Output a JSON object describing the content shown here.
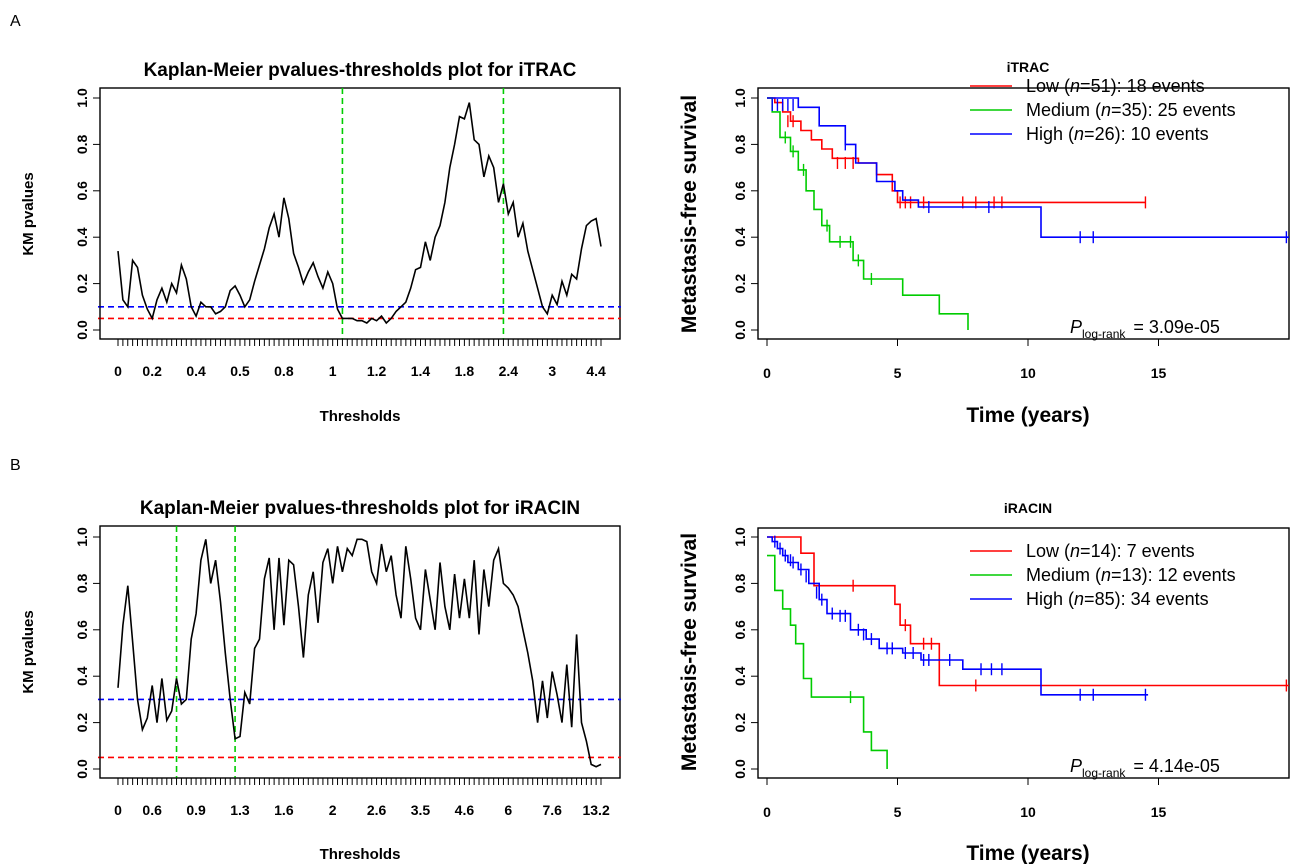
{
  "panels": [
    {
      "letter": "A",
      "km_pvalue": {
        "title": "Kaplan-Meier pvalues-thresholds plot for iTRAC",
        "xlabel": "Thresholds",
        "ylabel": "KM pvalues",
        "tick_labels_x": [
          "0",
          "0.2",
          "0.4",
          "0.5",
          "0.8",
          "1",
          "1.2",
          "1.4",
          "1.8",
          "2.4",
          "3",
          "4.4"
        ],
        "tick_labels_y": [
          "0.0",
          "0.2",
          "0.4",
          "0.6",
          "0.8",
          "1.0"
        ]
      },
      "survival": {
        "title": "iTRAC",
        "xlabel": "Time (years)",
        "ylabel": "Metastasis-free survival",
        "tick_labels_x": [
          "0",
          "5",
          "10",
          "15"
        ],
        "tick_labels_y": [
          "0.0",
          "0.2",
          "0.4",
          "0.6",
          "0.8",
          "1.0"
        ],
        "legend": [
          {
            "pre": "Low",
            "n": "51",
            "events": "18",
            "color": "#ff0000"
          },
          {
            "pre": "Medium",
            "n": "35",
            "events": "25",
            "color": "#00cc00"
          },
          {
            "pre": "High",
            "n": "26",
            "events": "10",
            "color": "#0000ff"
          }
        ],
        "p_label": "P",
        "p_sub": "log-rank",
        "p_value": "=  3.09e-05"
      }
    },
    {
      "letter": "B",
      "km_pvalue": {
        "title": "Kaplan-Meier pvalues-thresholds plot for iRACIN",
        "xlabel": "Thresholds",
        "ylabel": "KM pvalues",
        "tick_labels_x": [
          "0",
          "0.6",
          "0.9",
          "1.3",
          "1.6",
          "2",
          "2.6",
          "3.5",
          "4.6",
          "6",
          "7.6",
          "13.2"
        ],
        "tick_labels_y": [
          "0.0",
          "0.2",
          "0.4",
          "0.6",
          "0.8",
          "1.0"
        ]
      },
      "survival": {
        "title": "iRACIN",
        "xlabel": "Time (years)",
        "ylabel": "Metastasis-free survival",
        "tick_labels_x": [
          "0",
          "5",
          "10",
          "15"
        ],
        "tick_labels_y": [
          "0.0",
          "0.2",
          "0.4",
          "0.6",
          "0.8",
          "1.0"
        ],
        "legend": [
          {
            "pre": "Low",
            "n": "14",
            "events": "7",
            "color": "#ff0000"
          },
          {
            "pre": "Medium",
            "n": "13",
            "events": "12",
            "color": "#00cc00"
          },
          {
            "pre": "High",
            "n": "85",
            "events": "34",
            "color": "#0000ff"
          }
        ],
        "p_label": "P",
        "p_sub": "log-rank",
        "p_value": "=  4.14e-05"
      }
    }
  ],
  "chart_data": [
    {
      "type": "line",
      "title": "Kaplan-Meier pvalues-thresholds plot for iTRAC",
      "xlabel": "Thresholds",
      "ylabel": "KM pvalues",
      "ylim": [
        0,
        1
      ],
      "n_thresholds": 100,
      "x_tick_indices": [
        0,
        7,
        16,
        25,
        34,
        44,
        53,
        62,
        71,
        80,
        89,
        98
      ],
      "hlines": [
        {
          "y": 0.1,
          "color": "#0000ff"
        },
        {
          "y": 0.05,
          "color": "#ff0000"
        }
      ],
      "vlines": [
        {
          "x_index": 46,
          "color": "#00cc00"
        },
        {
          "x_index": 79,
          "color": "#00cc00"
        }
      ],
      "series": [
        {
          "color": "#000000",
          "values": [
            0.34,
            0.13,
            0.1,
            0.3,
            0.27,
            0.15,
            0.09,
            0.05,
            0.13,
            0.18,
            0.12,
            0.2,
            0.16,
            0.28,
            0.22,
            0.1,
            0.06,
            0.12,
            0.1,
            0.1,
            0.07,
            0.08,
            0.1,
            0.17,
            0.19,
            0.15,
            0.1,
            0.13,
            0.21,
            0.28,
            0.35,
            0.44,
            0.5,
            0.4,
            0.57,
            0.48,
            0.33,
            0.27,
            0.2,
            0.25,
            0.29,
            0.23,
            0.18,
            0.25,
            0.2,
            0.09,
            0.05,
            0.05,
            0.05,
            0.04,
            0.04,
            0.03,
            0.05,
            0.04,
            0.06,
            0.03,
            0.05,
            0.08,
            0.1,
            0.12,
            0.18,
            0.26,
            0.27,
            0.38,
            0.3,
            0.4,
            0.45,
            0.55,
            0.7,
            0.8,
            0.92,
            0.91,
            0.98,
            0.82,
            0.8,
            0.66,
            0.75,
            0.7,
            0.55,
            0.63,
            0.5,
            0.55,
            0.4,
            0.46,
            0.34,
            0.26,
            0.18,
            0.1,
            0.07,
            0.15,
            0.11,
            0.21,
            0.15,
            0.24,
            0.22,
            0.35,
            0.45,
            0.47,
            0.48,
            0.36
          ]
        }
      ]
    },
    {
      "type": "line",
      "title": "iTRAC",
      "xlabel": "Time (years)",
      "ylabel": "Metastasis-free survival",
      "xlim": [
        0,
        20
      ],
      "ylim": [
        0,
        1
      ],
      "series": [
        {
          "name": "Low",
          "color": "#ff0000",
          "steps": [
            [
              0,
              1.0
            ],
            [
              0.3,
              0.98
            ],
            [
              0.6,
              0.94
            ],
            [
              0.9,
              0.9
            ],
            [
              1.3,
              0.86
            ],
            [
              1.7,
              0.82
            ],
            [
              2.1,
              0.78
            ],
            [
              2.5,
              0.74
            ],
            [
              3.5,
              0.72
            ],
            [
              4.2,
              0.67
            ],
            [
              4.8,
              0.6
            ],
            [
              5.0,
              0.55
            ],
            [
              14.5,
              0.55
            ]
          ],
          "censors": [
            [
              0.8,
              0.9
            ],
            [
              1.0,
              0.9
            ],
            [
              2.7,
              0.72
            ],
            [
              3.0,
              0.72
            ],
            [
              3.3,
              0.72
            ],
            [
              5.1,
              0.55
            ],
            [
              5.3,
              0.55
            ],
            [
              5.5,
              0.55
            ],
            [
              6.0,
              0.55
            ],
            [
              7.5,
              0.55
            ],
            [
              8.0,
              0.55
            ],
            [
              8.7,
              0.55
            ],
            [
              9.0,
              0.55
            ],
            [
              14.5,
              0.55
            ]
          ]
        },
        {
          "name": "Medium",
          "color": "#00cc00",
          "steps": [
            [
              0,
              1.0
            ],
            [
              0.2,
              0.94
            ],
            [
              0.5,
              0.83
            ],
            [
              0.9,
              0.77
            ],
            [
              1.2,
              0.69
            ],
            [
              1.5,
              0.6
            ],
            [
              1.8,
              0.52
            ],
            [
              2.1,
              0.45
            ],
            [
              2.4,
              0.38
            ],
            [
              3.3,
              0.3
            ],
            [
              3.7,
              0.22
            ],
            [
              5.2,
              0.15
            ],
            [
              6.6,
              0.07
            ],
            [
              7.7,
              0.0
            ]
          ],
          "censors": [
            [
              0.7,
              0.83
            ],
            [
              1.0,
              0.77
            ],
            [
              1.4,
              0.69
            ],
            [
              2.3,
              0.45
            ],
            [
              2.8,
              0.38
            ],
            [
              3.2,
              0.38
            ],
            [
              3.5,
              0.3
            ],
            [
              4.0,
              0.22
            ]
          ]
        },
        {
          "name": "High",
          "color": "#0000ff",
          "steps": [
            [
              0,
              1.0
            ],
            [
              1.2,
              0.96
            ],
            [
              2.0,
              0.88
            ],
            [
              3.0,
              0.8
            ],
            [
              3.4,
              0.72
            ],
            [
              4.2,
              0.64
            ],
            [
              4.9,
              0.6
            ],
            [
              5.2,
              0.56
            ],
            [
              5.8,
              0.53
            ],
            [
              10.5,
              0.4
            ],
            [
              20,
              0.4
            ]
          ],
          "censors": [
            [
              0.2,
              0.97
            ],
            [
              0.4,
              0.97
            ],
            [
              0.6,
              0.97
            ],
            [
              0.8,
              0.97
            ],
            [
              1.0,
              0.97
            ],
            [
              3.0,
              0.8
            ],
            [
              6.2,
              0.53
            ],
            [
              8.5,
              0.53
            ],
            [
              12.0,
              0.4
            ],
            [
              12.5,
              0.4
            ],
            [
              19.9,
              0.4
            ]
          ]
        }
      ]
    },
    {
      "type": "line",
      "title": "Kaplan-Meier pvalues-thresholds plot for iRACIN",
      "xlabel": "Thresholds",
      "ylabel": "KM pvalues",
      "ylim": [
        0,
        1
      ],
      "n_thresholds": 100,
      "x_tick_indices": [
        0,
        7,
        16,
        25,
        34,
        44,
        53,
        62,
        71,
        80,
        89,
        98
      ],
      "hlines": [
        {
          "y": 0.3,
          "color": "#0000ff"
        },
        {
          "y": 0.05,
          "color": "#ff0000"
        }
      ],
      "vlines": [
        {
          "x_index": 12,
          "color": "#00cc00"
        },
        {
          "x_index": 24,
          "color": "#00cc00"
        }
      ],
      "series": [
        {
          "color": "#000000",
          "values": [
            0.35,
            0.62,
            0.79,
            0.55,
            0.3,
            0.17,
            0.22,
            0.36,
            0.2,
            0.39,
            0.21,
            0.25,
            0.39,
            0.28,
            0.3,
            0.56,
            0.67,
            0.9,
            0.99,
            0.8,
            0.9,
            0.72,
            0.5,
            0.3,
            0.13,
            0.14,
            0.33,
            0.28,
            0.52,
            0.56,
            0.82,
            0.91,
            0.6,
            0.91,
            0.62,
            0.9,
            0.88,
            0.7,
            0.48,
            0.75,
            0.85,
            0.63,
            0.89,
            0.95,
            0.8,
            0.96,
            0.85,
            0.95,
            0.92,
            0.99,
            0.99,
            0.98,
            0.85,
            0.8,
            0.97,
            0.85,
            0.92,
            0.75,
            0.65,
            0.96,
            0.82,
            0.65,
            0.6,
            0.86,
            0.73,
            0.6,
            0.89,
            0.7,
            0.6,
            0.84,
            0.65,
            0.82,
            0.65,
            0.9,
            0.58,
            0.86,
            0.7,
            0.9,
            0.95,
            0.8,
            0.78,
            0.75,
            0.7,
            0.6,
            0.5,
            0.38,
            0.2,
            0.38,
            0.22,
            0.42,
            0.32,
            0.2,
            0.45,
            0.18,
            0.58,
            0.2,
            0.12,
            0.02,
            0.01,
            0.02
          ]
        }
      ]
    },
    {
      "type": "line",
      "title": "iRACIN",
      "xlabel": "Time (years)",
      "ylabel": "Metastasis-free survival",
      "xlim": [
        0,
        20
      ],
      "ylim": [
        0,
        1
      ],
      "series": [
        {
          "name": "Low",
          "color": "#ff0000",
          "steps": [
            [
              0,
              1.0
            ],
            [
              1.3,
              0.93
            ],
            [
              1.8,
              0.79
            ],
            [
              4.9,
              0.71
            ],
            [
              5.1,
              0.62
            ],
            [
              5.5,
              0.54
            ],
            [
              6.6,
              0.36
            ],
            [
              20,
              0.36
            ]
          ],
          "censors": [
            [
              3.3,
              0.79
            ],
            [
              5.3,
              0.62
            ],
            [
              6.0,
              0.54
            ],
            [
              6.3,
              0.54
            ],
            [
              8.0,
              0.36
            ],
            [
              19.9,
              0.36
            ]
          ]
        },
        {
          "name": "Medium",
          "color": "#00cc00",
          "steps": [
            [
              0,
              0.92
            ],
            [
              0.3,
              0.77
            ],
            [
              0.6,
              0.69
            ],
            [
              0.9,
              0.62
            ],
            [
              1.1,
              0.54
            ],
            [
              1.4,
              0.39
            ],
            [
              1.7,
              0.31
            ],
            [
              3.7,
              0.16
            ],
            [
              4.0,
              0.08
            ],
            [
              4.6,
              0.0
            ]
          ],
          "censors": [
            [
              3.2,
              0.31
            ]
          ]
        },
        {
          "name": "High",
          "color": "#0000ff",
          "steps": [
            [
              0,
              1.0
            ],
            [
              0.2,
              0.98
            ],
            [
              0.4,
              0.95
            ],
            [
              0.6,
              0.92
            ],
            [
              0.8,
              0.89
            ],
            [
              1.2,
              0.86
            ],
            [
              1.6,
              0.8
            ],
            [
              2.0,
              0.73
            ],
            [
              2.3,
              0.67
            ],
            [
              3.2,
              0.6
            ],
            [
              3.8,
              0.56
            ],
            [
              4.3,
              0.52
            ],
            [
              5.2,
              0.5
            ],
            [
              5.9,
              0.47
            ],
            [
              7.5,
              0.43
            ],
            [
              10.5,
              0.32
            ],
            [
              14.6,
              0.32
            ]
          ],
          "censors": [
            [
              0.3,
              0.98
            ],
            [
              0.5,
              0.95
            ],
            [
              0.7,
              0.92
            ],
            [
              0.9,
              0.9
            ],
            [
              1.0,
              0.89
            ],
            [
              1.3,
              0.86
            ],
            [
              1.5,
              0.83
            ],
            [
              1.9,
              0.76
            ],
            [
              2.1,
              0.73
            ],
            [
              2.5,
              0.67
            ],
            [
              2.8,
              0.66
            ],
            [
              3.0,
              0.66
            ],
            [
              3.5,
              0.6
            ],
            [
              3.7,
              0.58
            ],
            [
              4.0,
              0.56
            ],
            [
              4.6,
              0.52
            ],
            [
              4.8,
              0.52
            ],
            [
              5.3,
              0.5
            ],
            [
              5.6,
              0.5
            ],
            [
              6.0,
              0.47
            ],
            [
              6.2,
              0.47
            ],
            [
              7.0,
              0.47
            ],
            [
              8.2,
              0.43
            ],
            [
              8.6,
              0.43
            ],
            [
              9.0,
              0.43
            ],
            [
              12.0,
              0.32
            ],
            [
              12.5,
              0.32
            ],
            [
              14.5,
              0.32
            ]
          ]
        }
      ]
    }
  ]
}
